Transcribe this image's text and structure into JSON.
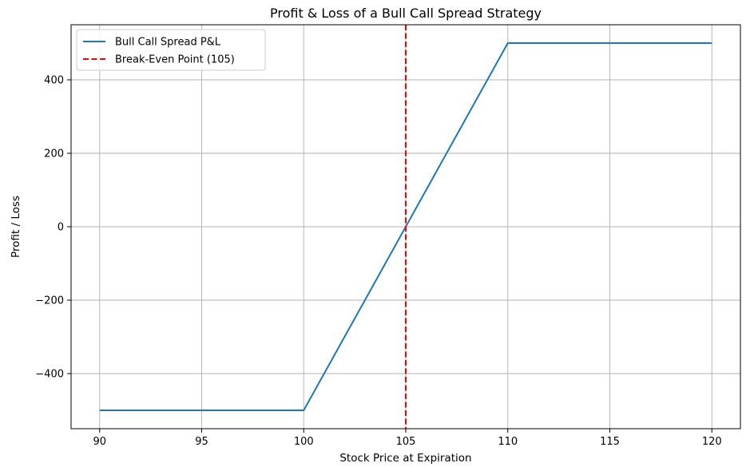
{
  "chart_data": {
    "type": "line",
    "title": "Profit & Loss of a Bull Call Spread Strategy",
    "xlabel": "Stock Price at Expiration",
    "ylabel": "Profit / Loss",
    "xlim": [
      88.6,
      121.4
    ],
    "ylim": [
      -550,
      550
    ],
    "x_ticks": [
      90,
      95,
      100,
      105,
      110,
      115,
      120
    ],
    "y_ticks": [
      -400,
      -200,
      0,
      200,
      400
    ],
    "grid": true,
    "legend_position": "top-left",
    "series": [
      {
        "name": "Bull Call Spread P&L",
        "color": "#1f77b4",
        "style": "solid",
        "x": [
          90,
          100,
          110,
          120
        ],
        "y": [
          -500,
          -500,
          500,
          500
        ]
      }
    ],
    "vlines": [
      {
        "name": "Break-Even Point (105)",
        "x": 105,
        "color": "#ff0000",
        "style": "dashed"
      }
    ]
  }
}
